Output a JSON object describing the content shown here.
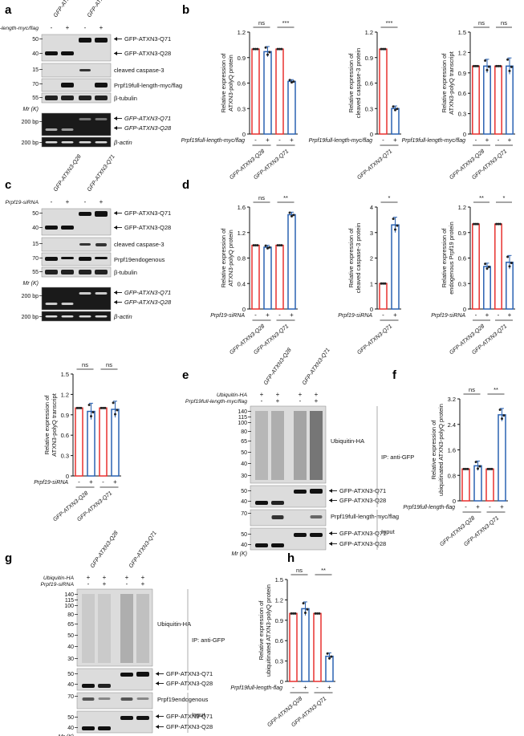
{
  "panel_letters": [
    "a",
    "b",
    "c",
    "d",
    "e",
    "f",
    "g",
    "h"
  ],
  "a": {
    "lanes": [
      "GFP-ATXN3-Q28",
      "GFP-ATXN3-Q71"
    ],
    "condition": "Prpf19full-length-myc/flag",
    "signs": [
      "-",
      "+",
      "-",
      "+"
    ],
    "mw": [
      "50",
      "40",
      "15",
      "70",
      "55",
      "Mr (K)",
      "200 bp",
      "200 bp"
    ],
    "labels": [
      "GFP-ATXN3-Q71",
      "GFP-ATXN3-Q28",
      "cleaved caspase-3",
      "Prpf19full-length-myc/flag",
      "β-tubulin",
      "GFP-ATXN3-Q71",
      "GFP-ATXN3-Q28",
      "β-actin"
    ]
  },
  "c": {
    "lanes": [
      "GFP-ATXN3-Q28",
      "GFP-ATXN3-Q71"
    ],
    "condition": "Prpf19-siRNA",
    "signs": [
      "-",
      "+",
      "-",
      "+"
    ],
    "mw": [
      "50",
      "40",
      "15",
      "70",
      "55",
      "Mr (K)",
      "200 bp",
      "200 bp"
    ],
    "labels": [
      "GFP-ATXN3-Q71",
      "GFP-ATXN3-Q28",
      "cleaved caspase-3",
      "Prpf19endogenous",
      "β-tubulin",
      "GFP-ATXN3-Q71",
      "GFP-ATXN3-Q28",
      "β-actin"
    ]
  },
  "e": {
    "lanes": [
      "GFP-ATXN3-Q28",
      "GFP-ATXN3-Q71"
    ],
    "cond1": "Ubiquitin-HA",
    "cond2": "Prpf19full-length-myc/flag",
    "signs1": [
      "+",
      "+",
      "+",
      "+"
    ],
    "signs2": [
      "-",
      "+",
      "-",
      "+"
    ],
    "mw": [
      "140",
      "115",
      "100",
      "80",
      "65",
      "50",
      "40",
      "30",
      "50",
      "40",
      "70",
      "50",
      "40",
      "Mr (K)"
    ],
    "labels": [
      "Ubiquitin-HA",
      "GFP-ATXN3-Q71",
      "GFP-ATXN3-Q28",
      "Prpf19full-length-myc/flag",
      "GFP-ATXN3-Q71",
      "GFP-ATXN3-Q28"
    ],
    "groups": [
      "IP: anti-GFP",
      "Input"
    ]
  },
  "g": {
    "lanes": [
      "GFP-ATXN3-Q28",
      "GFP-ATXN3-Q71"
    ],
    "cond1": "Ubiquitin-HA",
    "cond2": "Prpf19-siRNA",
    "signs1": [
      "+",
      "+",
      "+",
      "+"
    ],
    "signs2": [
      "-",
      "+",
      "-",
      "+"
    ],
    "mw": [
      "140",
      "115",
      "100",
      "80",
      "65",
      "50",
      "40",
      "30",
      "50",
      "40",
      "70",
      "50",
      "40",
      "Mr (K)"
    ],
    "labels": [
      "Ubiquitin-HA",
      "GFP-ATXN3-Q71",
      "GFP-ATXN3-Q28",
      "Prpf19endogenous",
      "GFP-ATXN3-Q71",
      "GFP-ATXN3-Q28"
    ],
    "groups": [
      "IP: anti-GFP",
      "Input"
    ]
  },
  "chart_data": [
    {
      "id": "b1",
      "type": "bar",
      "ylabel": "Relative expression of ATXN3-polyQ protein",
      "ylim": [
        0,
        1.2
      ],
      "yticks": [
        "0",
        "0.3",
        "0.6",
        "0.9",
        "1.2"
      ],
      "xlabel": "Prpf19full-length-myc/flag",
      "groups": [
        "GFP-ATXN3-Q28",
        "GFP-ATXN3-Q71"
      ],
      "signs": [
        "-",
        "+",
        "-",
        "+"
      ],
      "values": [
        1.0,
        0.97,
        1.0,
        0.62
      ],
      "errors": [
        0,
        0.06,
        0,
        0.02
      ],
      "significance": [
        "ns",
        "***"
      ]
    },
    {
      "id": "b2",
      "type": "bar",
      "ylabel": "Relative expression of cleaved caspase-3 protein",
      "ylim": [
        0,
        1.2
      ],
      "yticks": [
        "0",
        "0.3",
        "0.6",
        "0.9",
        "1.2"
      ],
      "xlabel": "Prpf19full-length-myc/flag",
      "groups": [
        "GFP-ATXN3-Q71"
      ],
      "signs": [
        "-",
        "+"
      ],
      "values": [
        1.0,
        0.3
      ],
      "errors": [
        0,
        0.03
      ],
      "significance": [
        "***"
      ]
    },
    {
      "id": "b3",
      "type": "bar",
      "ylabel": "Relative expression of ATXN3-polyQ transcript",
      "ylim": [
        0,
        1.5
      ],
      "yticks": [
        "0",
        "0.3",
        "0.6",
        "0.9",
        "1.2",
        "1.5"
      ],
      "xlabel": "Prpf19full-length-myc/flag",
      "groups": [
        "GFP-ATXN3-Q28",
        "GFP-ATXN3-Q71"
      ],
      "signs": [
        "-",
        "+",
        "-",
        "+"
      ],
      "values": [
        1.0,
        1.0,
        1.0,
        1.0
      ],
      "errors": [
        0,
        0.1,
        0,
        0.12
      ],
      "significance": [
        "ns",
        "ns"
      ]
    },
    {
      "id": "d1",
      "type": "bar",
      "ylabel": "Relative expression of ATXN3-polyQ protein",
      "ylim": [
        0,
        1.6
      ],
      "yticks": [
        "0",
        "0.4",
        "0.8",
        "1.2",
        "1.6"
      ],
      "xlabel": "Prpf19-siRNA",
      "groups": [
        "GFP-ATXN3-Q28",
        "GFP-ATXN3-Q71"
      ],
      "signs": [
        "-",
        "+",
        "-",
        "+"
      ],
      "values": [
        1.0,
        0.97,
        1.0,
        1.48
      ],
      "errors": [
        0,
        0.03,
        0,
        0.04
      ],
      "significance": [
        "ns",
        "**"
      ]
    },
    {
      "id": "d2",
      "type": "bar",
      "ylabel": "Relative expression of cleaved caspase-3 protein",
      "ylim": [
        0,
        4
      ],
      "yticks": [
        "0",
        "1",
        "2",
        "3",
        "4"
      ],
      "xlabel": "Prpf19-siRNA",
      "groups": [
        "GFP-ATXN3-Q71"
      ],
      "signs": [
        "-",
        "+"
      ],
      "values": [
        1.0,
        3.3
      ],
      "errors": [
        0,
        0.3
      ],
      "significance": [
        "*"
      ]
    },
    {
      "id": "d3",
      "type": "bar",
      "ylabel": "Relative expression of endogenous Prpf19 protein",
      "ylim": [
        0,
        1.2
      ],
      "yticks": [
        "0",
        "0.3",
        "0.6",
        "0.9",
        "1.2"
      ],
      "xlabel": "Prpf19-siRNA",
      "groups": [
        "GFP-ATXN3-Q28",
        "GFP-ATXN3-Q71"
      ],
      "signs": [
        "-",
        "+",
        "-",
        "+"
      ],
      "values": [
        1.0,
        0.5,
        1.0,
        0.55
      ],
      "errors": [
        0,
        0.04,
        0,
        0.08
      ],
      "significance": [
        "**",
        "*"
      ]
    },
    {
      "id": "c2",
      "type": "bar",
      "ylabel": "Relative expression of ATXN3-polyQ transcript",
      "ylim": [
        0,
        1.5
      ],
      "yticks": [
        "0",
        "0.3",
        "0.6",
        "0.9",
        "1.2",
        "1.5"
      ],
      "xlabel": "Prpf19-siRNA",
      "groups": [
        "GFP-ATXN3-Q28",
        "GFP-ATXN3-Q71"
      ],
      "signs": [
        "-",
        "+",
        "-",
        "+"
      ],
      "values": [
        1.0,
        0.95,
        1.0,
        0.98
      ],
      "errors": [
        0,
        0.12,
        0,
        0.12
      ],
      "significance": [
        "ns",
        "ns"
      ]
    },
    {
      "id": "f",
      "type": "bar",
      "ylabel": "Relative expression of ubiquitinated ATXN3-polyQ protein",
      "ylim": [
        0,
        3.2
      ],
      "yticks": [
        "0",
        "0.8",
        "1.6",
        "2.4",
        "3.2"
      ],
      "xlabel": "Prpf19full-length-flag",
      "groups": [
        "GFP-ATXN3-Q28",
        "GFP-ATXN3-Q71"
      ],
      "signs": [
        "-",
        "+",
        "-",
        "+"
      ],
      "values": [
        1.0,
        1.1,
        1.0,
        2.7
      ],
      "errors": [
        0,
        0.15,
        0,
        0.2
      ],
      "significance": [
        "ns",
        "**"
      ]
    },
    {
      "id": "h",
      "type": "bar",
      "ylabel": "Relative expression of ubiquitinated ATXN3-polyQ protein",
      "ylim": [
        0,
        1.5
      ],
      "yticks": [
        "0",
        "0.3",
        "0.6",
        "0.9",
        "1.2",
        "1.5"
      ],
      "xlabel": "Prpf19full-length-flag",
      "groups": [
        "GFP-ATXN3-Q28",
        "GFP-ATXN3-Q71"
      ],
      "signs": [
        "-",
        "+",
        "-",
        "+"
      ],
      "values": [
        1.0,
        1.07,
        1.0,
        0.37
      ],
      "errors": [
        0,
        0.1,
        0,
        0.05
      ],
      "significance": [
        "ns",
        "**"
      ]
    }
  ]
}
